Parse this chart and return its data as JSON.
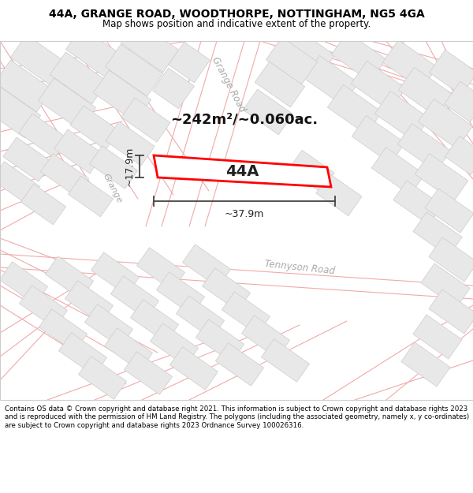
{
  "title": "44A, GRANGE ROAD, WOODTHORPE, NOTTINGHAM, NG5 4GA",
  "subtitle": "Map shows position and indicative extent of the property.",
  "footer": "Contains OS data © Crown copyright and database right 2021. This information is subject to Crown copyright and database rights 2023 and is reproduced with the permission of HM Land Registry. The polygons (including the associated geometry, namely x, y co-ordinates) are subject to Crown copyright and database rights 2023 Ordnance Survey 100026316.",
  "area_label": "~242m²/~0.060ac.",
  "property_label": "44A",
  "dim_width": "~37.9m",
  "dim_height": "~17.9m",
  "property_color": "#ff0000",
  "property_fill": "#ffffff",
  "road_line_color": "#f0aaaa",
  "building_fill": "#e8e8e8",
  "building_edge": "#cccccc",
  "road_label_color": "#aaaaaa",
  "map_bg": "#ffffff",
  "title_bg": "#ffffff",
  "footer_bg": "#ffffff",
  "title_fontsize": 10,
  "subtitle_fontsize": 8.5,
  "footer_fontsize": 6.2
}
